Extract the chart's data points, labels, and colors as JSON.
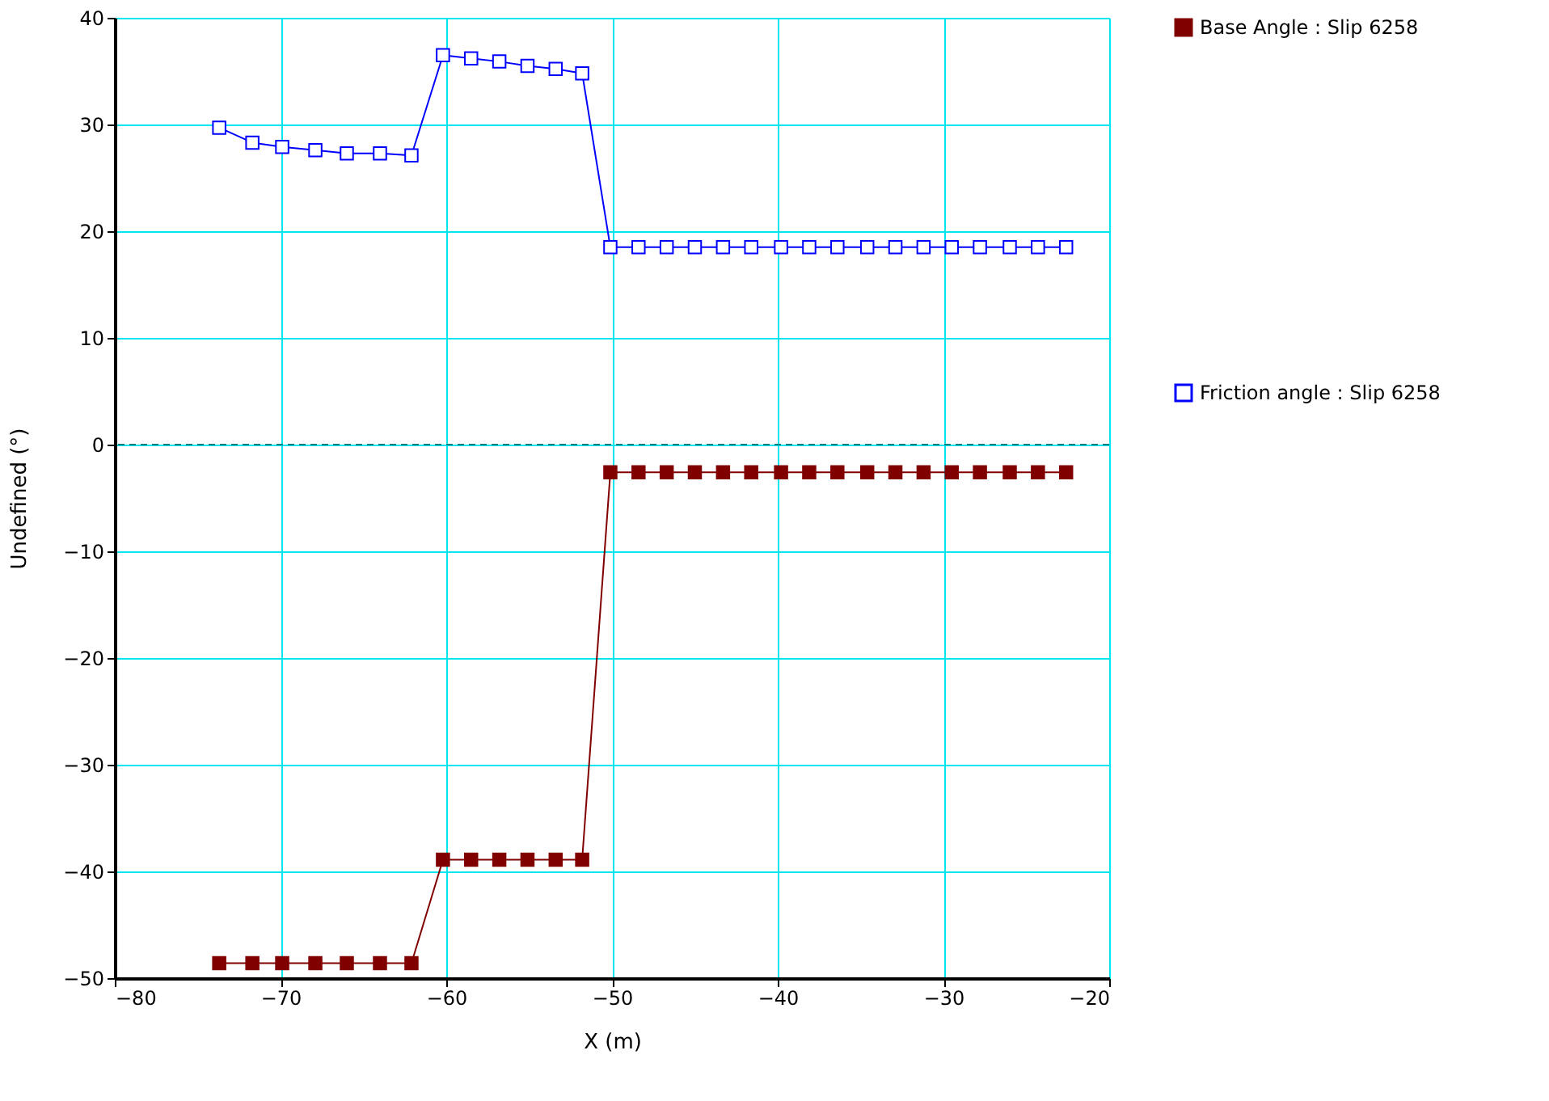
{
  "chart_data": {
    "type": "line",
    "xlabel": "X (m)",
    "ylabel": "Undefined (°)",
    "xlim": [
      -80,
      -20
    ],
    "xticks": [
      -80,
      -70,
      -60,
      -50,
      -40,
      -30,
      -20
    ],
    "ylim": [
      -50,
      40
    ],
    "yticks": [
      -50,
      -40,
      -30,
      -20,
      -10,
      0,
      10,
      20,
      30,
      40
    ],
    "x": [
      -73.7,
      -71.7,
      -69.9,
      -67.9,
      -66.0,
      -64.0,
      -62.1,
      -60.2,
      -58.5,
      -56.8,
      -55.1,
      -53.4,
      -51.8,
      -50.1,
      -48.4,
      -46.7,
      -45.0,
      -43.3,
      -41.6,
      -39.8,
      -38.1,
      -36.4,
      -34.6,
      -32.9,
      -31.2,
      -29.5,
      -27.8,
      -26.0,
      -24.3,
      -22.6
    ],
    "series": [
      {
        "name": "Base Angle : Slip 6258",
        "color": "#800000",
        "marker": "square",
        "values": [
          -48.6,
          -48.6,
          -48.6,
          -48.6,
          -48.6,
          -48.6,
          -48.6,
          -38.9,
          -38.9,
          -38.9,
          -38.9,
          -38.9,
          -38.9,
          -2.6,
          -2.6,
          -2.6,
          -2.6,
          -2.6,
          -2.6,
          -2.6,
          -2.6,
          -2.6,
          -2.6,
          -2.6,
          -2.6,
          -2.6,
          -2.6,
          -2.6,
          -2.6,
          -2.6
        ]
      },
      {
        "name": "Friction angle : Slip 6258",
        "color": "#0000ff",
        "marker": "square",
        "values": [
          29.7,
          28.3,
          27.9,
          27.6,
          27.3,
          27.3,
          27.1,
          36.5,
          36.2,
          35.9,
          35.5,
          35.2,
          34.8,
          18.5,
          18.5,
          18.5,
          18.5,
          18.5,
          18.5,
          18.5,
          18.5,
          18.5,
          18.5,
          18.5,
          18.5,
          18.5,
          18.5,
          18.5,
          18.5,
          18.5
        ]
      }
    ],
    "ref_lines": [
      {
        "axis": "y",
        "value": 0,
        "label": null,
        "color": "#008080",
        "line_style": "dashed"
      }
    ],
    "grid": true,
    "legend": "right"
  }
}
